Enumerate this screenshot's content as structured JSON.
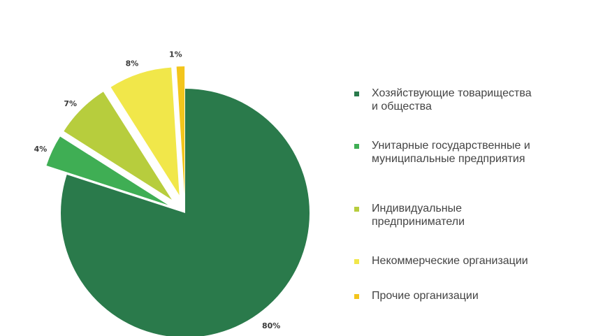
{
  "chart_data": {
    "type": "pie",
    "categories": [
      "Хозяйствующие товарищества\nи общества",
      "Унитарные государственные и\nмуниципальные предприятия",
      "Индивидуальные\nпредприниматели",
      "Некоммерческие организации",
      "Прочие организации"
    ],
    "values": [
      80,
      4,
      7,
      8,
      1
    ],
    "value_labels": [
      "80%",
      "4%",
      "7%",
      "8%",
      "1%"
    ],
    "colors": [
      "#2a7a4b",
      "#3fae54",
      "#b7cd3d",
      "#f1e74a",
      "#f3c51c"
    ],
    "exploded": [
      false,
      true,
      true,
      true,
      true
    ],
    "legend_position": "right",
    "grid": false
  }
}
